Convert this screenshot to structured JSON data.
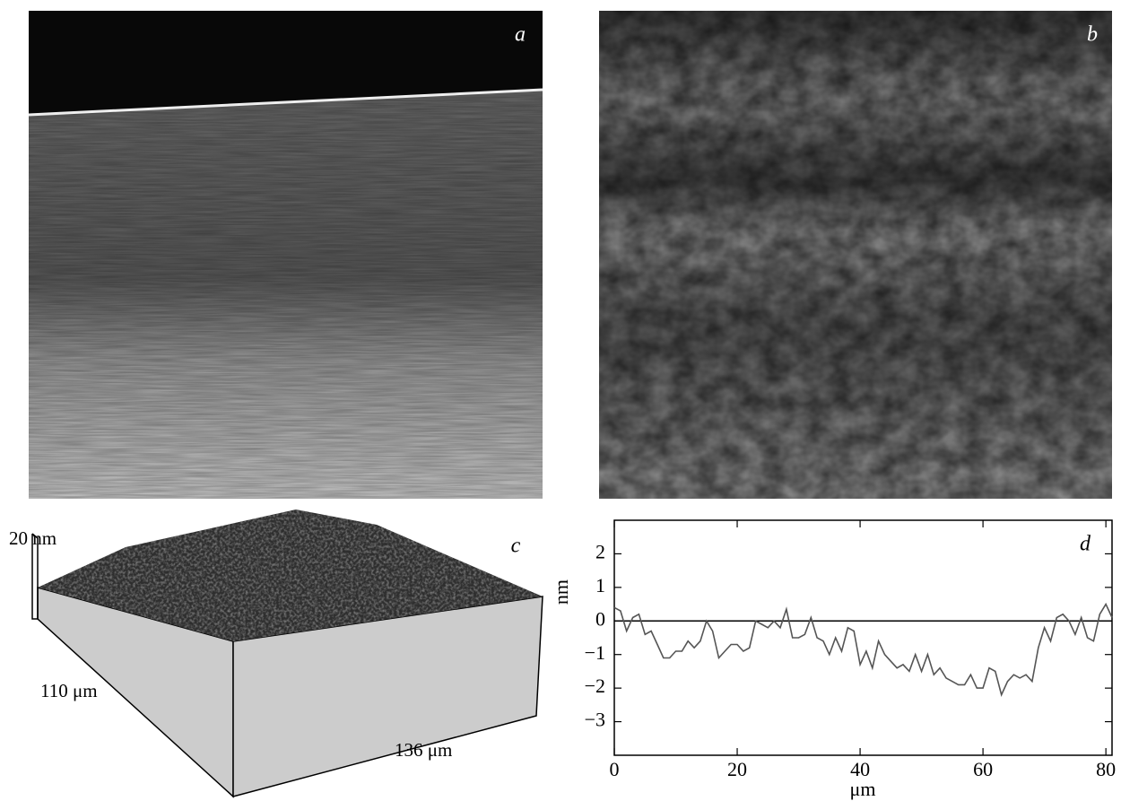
{
  "panels": [
    {
      "label": "a"
    },
    {
      "label": "b"
    },
    {
      "label": "c",
      "annotations": [
        "20 nm",
        "110 μm",
        "136 μm"
      ]
    }
  ],
  "chart_data": {
    "type": "line",
    "panel_label": "d",
    "xlabel": "μm",
    "ylabel": "nm",
    "x": [
      0,
      1,
      2,
      3,
      4,
      5,
      6,
      7,
      8,
      9,
      10,
      11,
      12,
      13,
      14,
      15,
      16,
      17,
      18,
      19,
      20,
      21,
      22,
      23,
      24,
      25,
      26,
      27,
      28,
      29,
      30,
      31,
      32,
      33,
      34,
      35,
      36,
      37,
      38,
      39,
      40,
      41,
      42,
      43,
      44,
      45,
      46,
      47,
      48,
      49,
      50,
      51,
      52,
      53,
      54,
      55,
      56,
      57,
      58,
      59,
      60,
      61,
      62,
      63,
      64,
      65,
      66,
      67,
      68,
      69,
      70,
      71,
      72,
      73,
      74,
      75,
      76,
      77,
      78,
      79,
      80,
      81
    ],
    "series": [
      {
        "color": "#555555",
        "values": [
          0.4,
          0.3,
          -0.3,
          0.1,
          0.2,
          -0.4,
          -0.3,
          -0.7,
          -1.1,
          -1.1,
          -0.9,
          -0.9,
          -0.6,
          -0.8,
          -0.6,
          0,
          -0.3,
          -1.1,
          -0.9,
          -0.7,
          -0.7,
          -0.9,
          -0.8,
          0,
          -0.1,
          -0.2,
          0,
          -0.2,
          0.35,
          -0.5,
          -0.5,
          -0.4,
          0.1,
          -0.5,
          -0.6,
          -1,
          -0.5,
          -0.9,
          -0.2,
          -0.3,
          -1.3,
          -0.9,
          -1.4,
          -0.6,
          -1,
          -1.2,
          -1.4,
          -1.3,
          -1.5,
          -1,
          -1.5,
          -1,
          -1.6,
          -1.4,
          -1.7,
          -1.8,
          -1.9,
          -1.9,
          -1.6,
          -2,
          -2,
          -1.4,
          -1.5,
          -2.2,
          -1.8,
          -1.6,
          -1.7,
          -1.6,
          -1.8,
          -0.8,
          -0.2,
          -0.6,
          0.1,
          0.2,
          0,
          -0.4,
          0.1,
          -0.5,
          -0.6,
          0.2,
          0.5,
          0.1
        ]
      }
    ],
    "reference_line": 0,
    "xlim": [
      0,
      81
    ],
    "ylim": [
      -4,
      3
    ],
    "xticks": [
      0,
      20,
      40,
      60,
      80
    ],
    "yticks": [
      {
        "value": -3,
        "label": "−3"
      },
      {
        "value": -2,
        "label": "−2"
      },
      {
        "value": -1,
        "label": "−1"
      },
      0,
      1,
      2
    ]
  }
}
